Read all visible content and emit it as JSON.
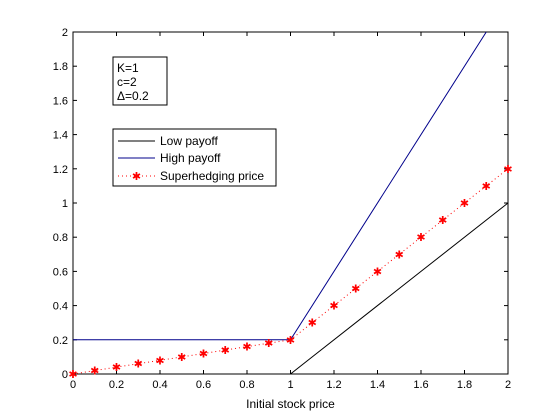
{
  "chart_data": {
    "type": "line",
    "xlabel": "Initial stock price",
    "ylabel": "",
    "title": "",
    "xlim": [
      0,
      2
    ],
    "ylim": [
      0,
      2
    ],
    "x_ticks": [
      "0",
      "0.2",
      "0.4",
      "0.6",
      "0.8",
      "1",
      "1.2",
      "1.4",
      "1.6",
      "1.8",
      "2"
    ],
    "y_ticks": [
      "0",
      "0.2",
      "0.4",
      "0.6",
      "0.8",
      "1",
      "1.2",
      "1.4",
      "1.6",
      "1.8",
      "2"
    ],
    "grid": false,
    "legend_placement": "upper-left",
    "series": [
      {
        "name": "Low payoff",
        "color": "#000000",
        "style": "solid",
        "x": [
          0,
          1,
          1.1,
          1.6,
          2
        ],
        "y": [
          0,
          0,
          0.1,
          0.6,
          1
        ]
      },
      {
        "name": "High payoff",
        "color": "#00008b",
        "style": "solid",
        "x": [
          0,
          1,
          1.9
        ],
        "y": [
          0.2,
          0.2,
          2
        ]
      },
      {
        "name": "Superhedging price",
        "color": "#ff0000",
        "style": "dotted-star",
        "x": [
          0,
          0.1,
          0.2,
          0.3,
          0.4,
          0.5,
          0.6,
          0.7,
          0.8,
          0.9,
          1,
          1.1,
          1.2,
          1.3,
          1.4,
          1.5,
          1.6,
          1.7,
          1.8,
          1.9,
          2
        ],
        "y": [
          0,
          0.02,
          0.04,
          0.06,
          0.08,
          0.1,
          0.12,
          0.14,
          0.16,
          0.18,
          0.2,
          0.3,
          0.4,
          0.5,
          0.6,
          0.7,
          0.8,
          0.9,
          1,
          1.1,
          1.2
        ]
      }
    ],
    "annotations": [
      "K=1",
      "c=2",
      "Δ=0.2"
    ]
  }
}
